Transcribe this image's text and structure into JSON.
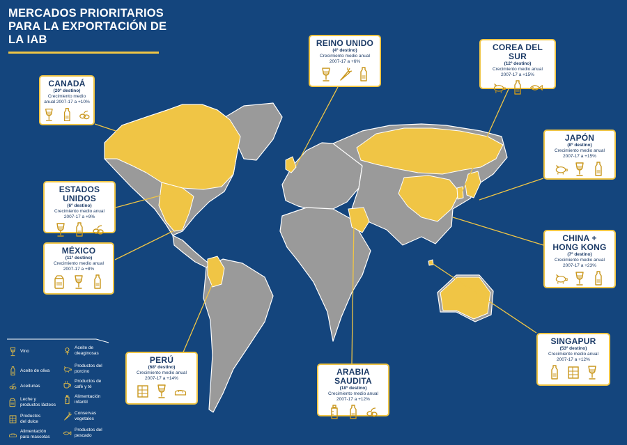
{
  "title": "MERCADOS PRIORITARIOS\nPARA LA EXPORTACIÓN DE\nLA IAB",
  "colors": {
    "background": "#14457d",
    "land": "#9a9a9a",
    "highlight": "#f0c545",
    "card_border": "#f0c545",
    "text": "#1b3a66"
  },
  "markets": [
    {
      "id": "canada",
      "name": "CANADÁ",
      "rank": "(20º destino)",
      "growth": "Crecimiento medio\nanual 2007-17 a +10%",
      "icons": [
        "wine-icon",
        "oil-bottle-icon",
        "olives-icon"
      ]
    },
    {
      "id": "reino-unido",
      "name": "REINO UNIDO",
      "rank": "(4º destino)",
      "growth": "Crecimiento medio anual\n2007-17 a +6%",
      "icons": [
        "wine-icon",
        "vegetables-icon",
        "oil-bottle-icon"
      ]
    },
    {
      "id": "corea",
      "name": "COREA DEL SUR",
      "rank": "(12º destino)",
      "growth": "Crecimiento medio anual\n2007-17 a +15%",
      "icons": [
        "pig-icon",
        "oil-bottle-icon",
        "fish-icon"
      ]
    },
    {
      "id": "japon",
      "name": "JAPÓN",
      "rank": "(8º destino)",
      "growth": "Crecimiento medio anual\n2007-17 a +15%",
      "icons": [
        "pig-icon",
        "wine-icon",
        "oil-bottle-icon"
      ]
    },
    {
      "id": "eeuu",
      "name": "ESTADOS UNIDOS",
      "rank": "(6º destino)",
      "growth": "Crecimiento medio anual\n2007-17 a +9%",
      "icons": [
        "wine-icon",
        "oil-bottle-icon",
        "olives-icon"
      ]
    },
    {
      "id": "mexico",
      "name": "MÉXICO",
      "rank": "(11º destino)",
      "growth": "Crecimiento medio anual\n2007-17 a +8%",
      "icons": [
        "dairy-icon",
        "wine-icon",
        "oil-bottle-icon"
      ]
    },
    {
      "id": "china",
      "name": "CHINA +\nHONG KONG",
      "rank": "(7º destino)",
      "growth": "Crecimiento medio anual\n2007-17 a +23%",
      "icons": [
        "pig-icon",
        "wine-icon",
        "oil-bottle-icon"
      ]
    },
    {
      "id": "peru",
      "name": "PERÚ",
      "rank": "(68º destino)",
      "growth": "Crecimiento medio anual\n2007-17 a +14%",
      "icons": [
        "sweets-icon",
        "wine-icon",
        "pet-food-icon"
      ]
    },
    {
      "id": "arabia",
      "name": "ARABIA SAUDITA",
      "rank": "(18º destino)",
      "growth": "Crecimiento medio anual\n2007-17 a +12%",
      "icons": [
        "baby-bottle-icon",
        "oil-bottle-icon",
        "olives-icon"
      ]
    },
    {
      "id": "singapur",
      "name": "SINGAPUR",
      "rank": "(53º destino)",
      "growth": "Crecimiento medio anual\n2007-17 a +12%",
      "icons": [
        "oil-bottle-icon",
        "sweets-icon",
        "wine-icon"
      ]
    }
  ],
  "legend": [
    {
      "icon": "wine-icon",
      "label": "Vino"
    },
    {
      "icon": "seeds-icon",
      "label": "Aceite de\noleaginosas"
    },
    {
      "icon": "oil-bottle-icon",
      "label": "Aceite de oliva"
    },
    {
      "icon": "pig-icon",
      "label": "Productos del\nporcino"
    },
    {
      "icon": "olives-icon",
      "label": "Aceitunas"
    },
    {
      "icon": "coffee-icon",
      "label": "Productos de\ncafé y té"
    },
    {
      "icon": "dairy-icon",
      "label": "Leche y\nproductos lácteos"
    },
    {
      "icon": "baby-bottle-icon",
      "label": "Alimentación\ninfantil"
    },
    {
      "icon": "sweets-icon",
      "label": "Productos\ndel dulce"
    },
    {
      "icon": "vegetables-icon",
      "label": "Conservas\nvegetales"
    },
    {
      "icon": "pet-food-icon",
      "label": "Alimentación\npara mascotas"
    },
    {
      "icon": "fish-icon",
      "label": "Productos del\npescado"
    }
  ]
}
